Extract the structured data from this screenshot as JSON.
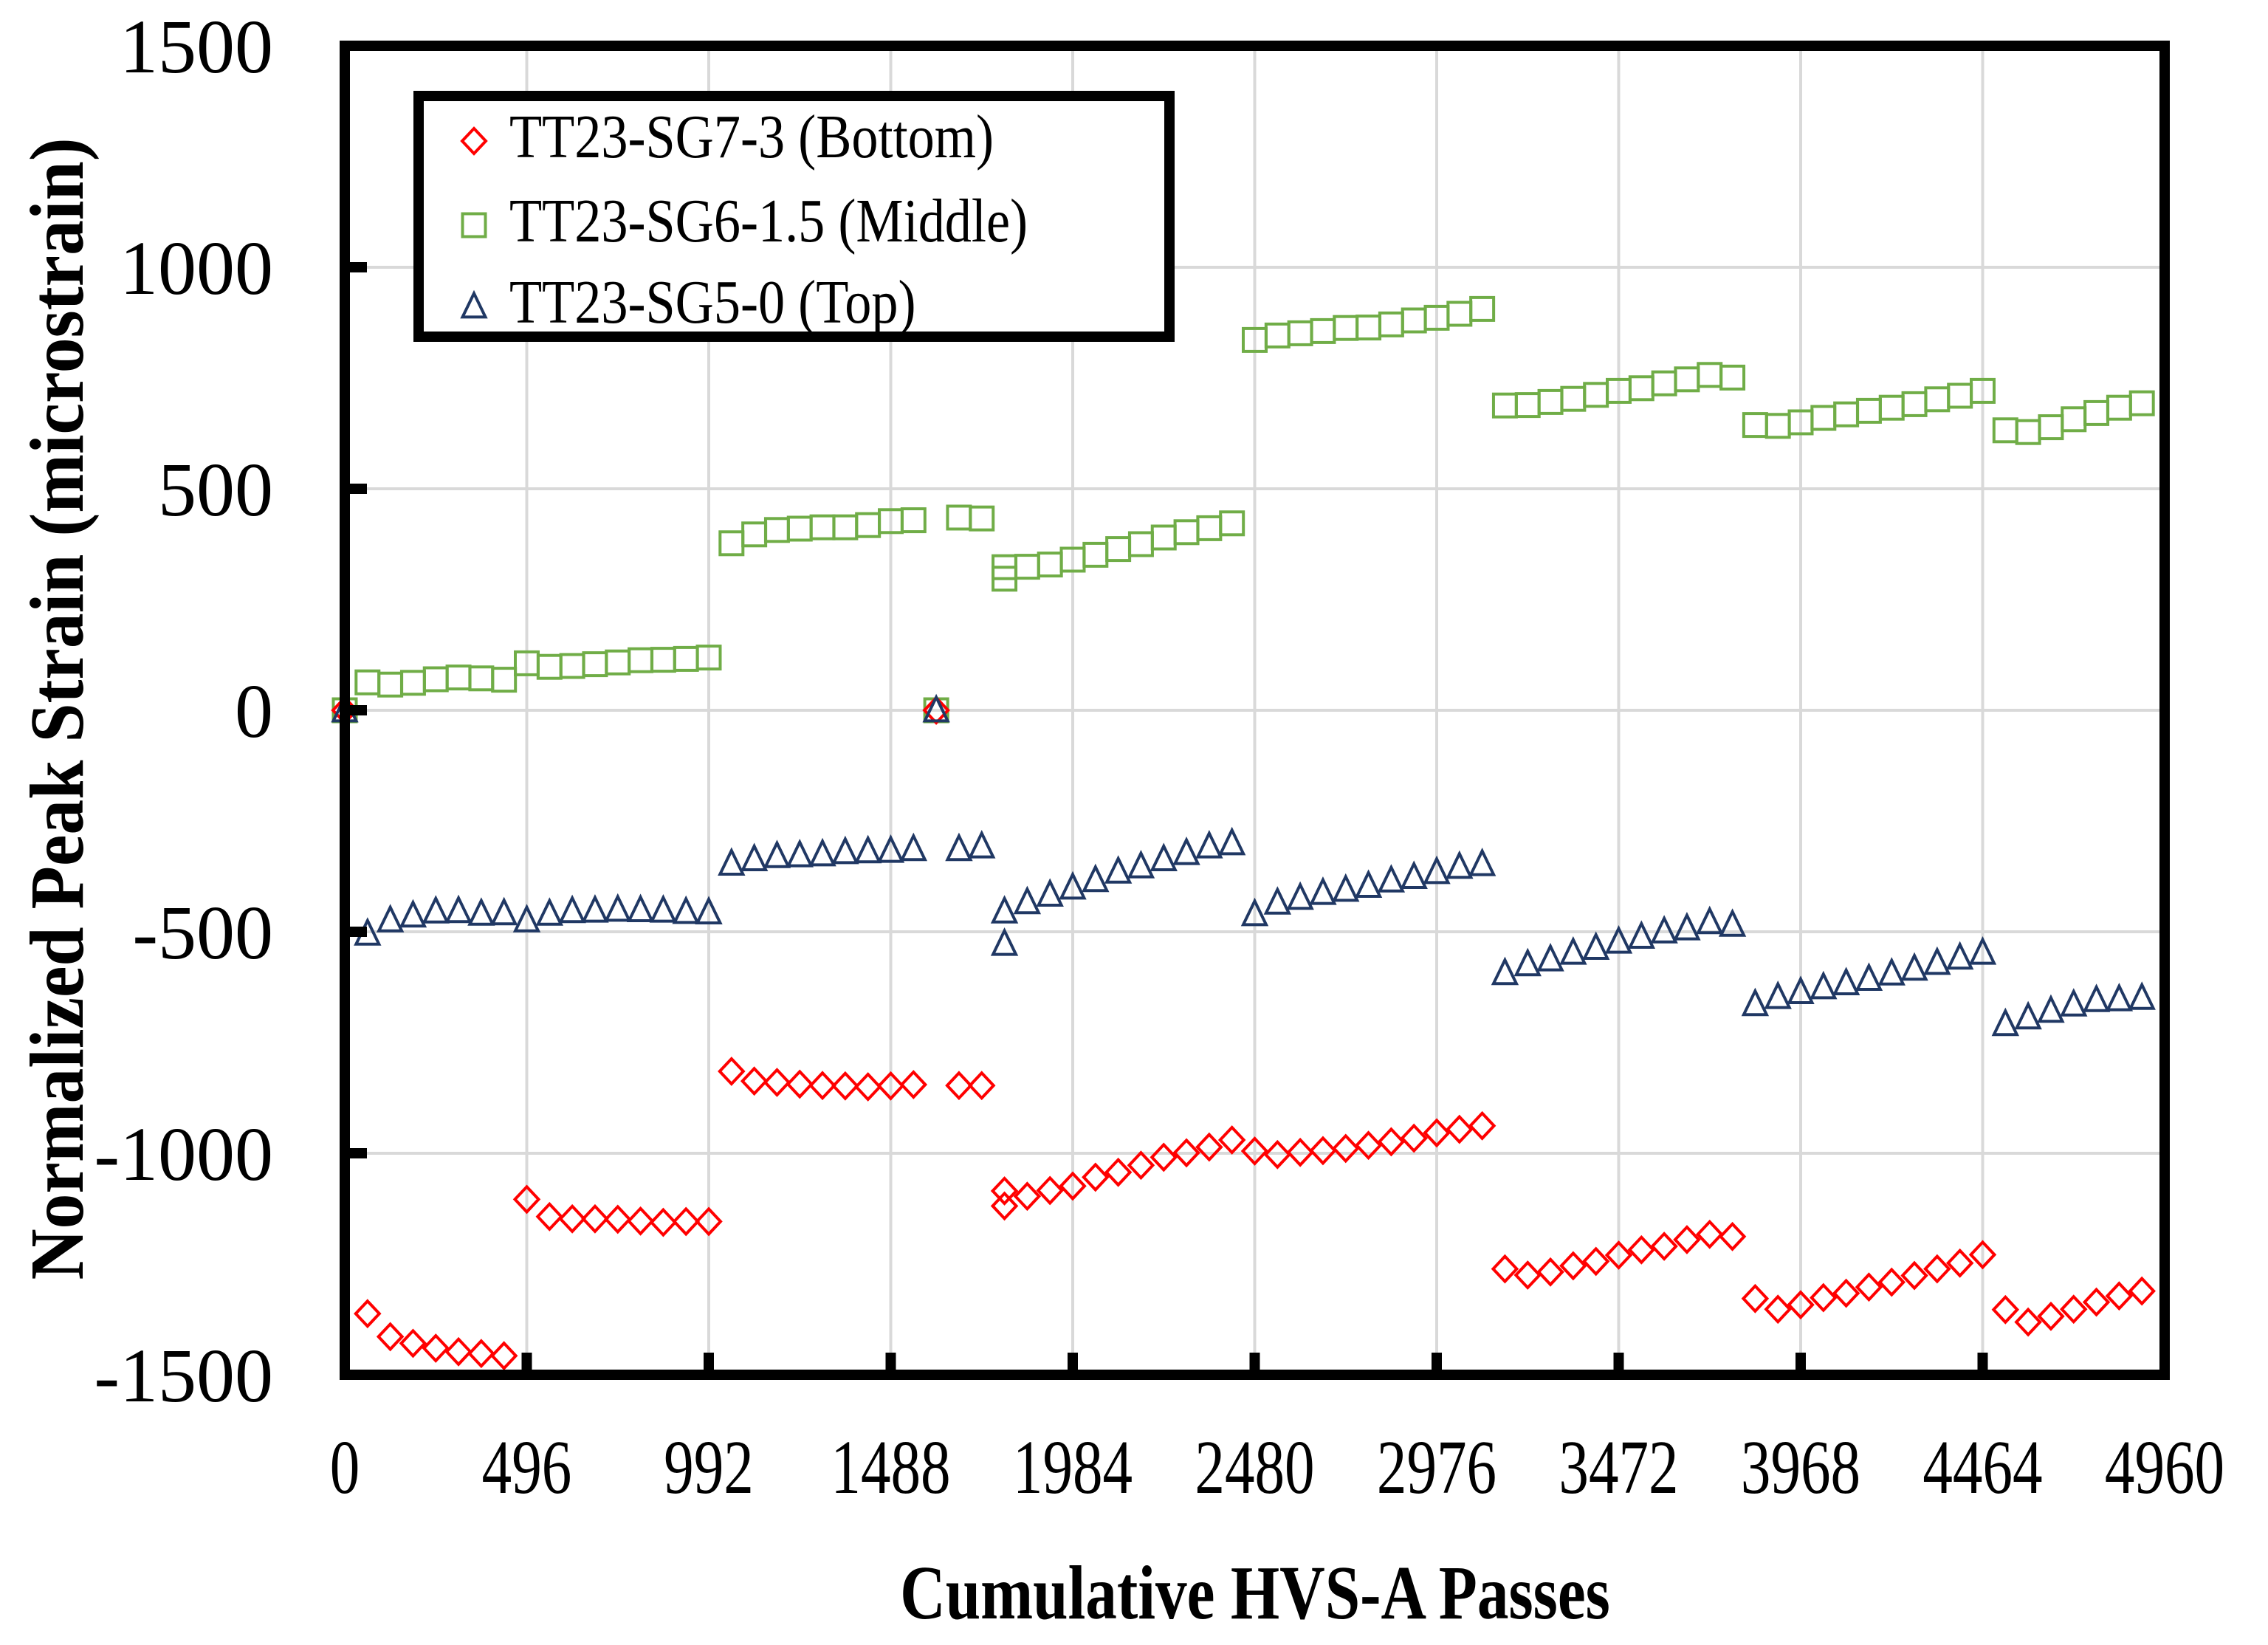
{
  "chart_data": {
    "type": "scatter",
    "title": "",
    "xlabel": "Cumulative HVS-A Passes",
    "ylabel": "Normalized Peak Strain (microstrain)",
    "xlim": [
      0,
      4960
    ],
    "ylim": [
      -1500,
      1500
    ],
    "xticks": [
      0,
      496,
      992,
      1488,
      1984,
      2480,
      2976,
      3472,
      3968,
      4464,
      4960
    ],
    "yticks": [
      -1500,
      -1000,
      -500,
      0,
      500,
      1000,
      1500
    ],
    "xtick_labels": [
      "0",
      "496",
      "992",
      "1488",
      "1984",
      "2480",
      "2976",
      "3472",
      "3968",
      "4464",
      "4960"
    ],
    "ytick_labels": [
      "-1500",
      "-1000",
      "-500",
      "0",
      "500",
      "1000",
      "1500"
    ],
    "grid": true,
    "legend_position": "top-left",
    "series": [
      {
        "name": "TT23-SG7-3 (Bottom)",
        "marker": "diamond",
        "color": "#FF0000",
        "points": [
          [
            0,
            0
          ],
          [
            62,
            -1362
          ],
          [
            124,
            -1414
          ],
          [
            186,
            -1429
          ],
          [
            248,
            -1440
          ],
          [
            310,
            -1448
          ],
          [
            372,
            -1452
          ],
          [
            434,
            -1457
          ],
          [
            496,
            -1104
          ],
          [
            558,
            -1143
          ],
          [
            620,
            -1148
          ],
          [
            682,
            -1148
          ],
          [
            744,
            -1149
          ],
          [
            806,
            -1153
          ],
          [
            868,
            -1156
          ],
          [
            930,
            -1154
          ],
          [
            992,
            -1154
          ],
          [
            1054,
            -815
          ],
          [
            1116,
            -837
          ],
          [
            1178,
            -840
          ],
          [
            1240,
            -844
          ],
          [
            1302,
            -847
          ],
          [
            1364,
            -848
          ],
          [
            1426,
            -850
          ],
          [
            1488,
            -848
          ],
          [
            1550,
            -845
          ],
          [
            1612,
            0
          ],
          [
            1674,
            -847
          ],
          [
            1736,
            -847
          ],
          [
            1798,
            -1085
          ],
          [
            1798,
            -1119
          ],
          [
            1860,
            -1097
          ],
          [
            1922,
            -1084
          ],
          [
            1984,
            -1074
          ],
          [
            2046,
            -1054
          ],
          [
            2108,
            -1043
          ],
          [
            2170,
            -1027
          ],
          [
            2232,
            -1009
          ],
          [
            2294,
            -999
          ],
          [
            2356,
            -986
          ],
          [
            2418,
            -970
          ],
          [
            2480,
            -995
          ],
          [
            2542,
            -1003
          ],
          [
            2604,
            -998
          ],
          [
            2666,
            -994
          ],
          [
            2728,
            -989
          ],
          [
            2790,
            -982
          ],
          [
            2852,
            -974
          ],
          [
            2914,
            -966
          ],
          [
            2976,
            -954
          ],
          [
            3038,
            -946
          ],
          [
            3100,
            -938
          ],
          [
            3162,
            -1261
          ],
          [
            3224,
            -1275
          ],
          [
            3286,
            -1268
          ],
          [
            3348,
            -1254
          ],
          [
            3410,
            -1244
          ],
          [
            3472,
            -1230
          ],
          [
            3534,
            -1218
          ],
          [
            3596,
            -1210
          ],
          [
            3658,
            -1195
          ],
          [
            3720,
            -1183
          ],
          [
            3782,
            -1188
          ],
          [
            3844,
            -1328
          ],
          [
            3906,
            -1352
          ],
          [
            3968,
            -1342
          ],
          [
            4030,
            -1326
          ],
          [
            4092,
            -1316
          ],
          [
            4154,
            -1302
          ],
          [
            4216,
            -1291
          ],
          [
            4278,
            -1276
          ],
          [
            4340,
            -1261
          ],
          [
            4402,
            -1248
          ],
          [
            4464,
            -1229
          ],
          [
            4526,
            -1353
          ],
          [
            4588,
            -1381
          ],
          [
            4650,
            -1368
          ],
          [
            4712,
            -1352
          ],
          [
            4774,
            -1336
          ],
          [
            4836,
            -1322
          ],
          [
            4898,
            -1311
          ]
        ]
      },
      {
        "name": "TT23-SG6-1.5 (Middle)",
        "marker": "square",
        "color": "#70AD47",
        "points": [
          [
            0,
            0
          ],
          [
            62,
            63
          ],
          [
            124,
            58
          ],
          [
            186,
            62
          ],
          [
            248,
            70
          ],
          [
            310,
            74
          ],
          [
            372,
            72
          ],
          [
            434,
            69
          ],
          [
            496,
            106
          ],
          [
            558,
            98
          ],
          [
            620,
            100
          ],
          [
            682,
            104
          ],
          [
            744,
            108
          ],
          [
            806,
            113
          ],
          [
            868,
            114
          ],
          [
            930,
            116
          ],
          [
            992,
            119
          ],
          [
            1054,
            377
          ],
          [
            1116,
            397
          ],
          [
            1178,
            407
          ],
          [
            1240,
            410
          ],
          [
            1302,
            413
          ],
          [
            1364,
            413
          ],
          [
            1426,
            418
          ],
          [
            1488,
            427
          ],
          [
            1550,
            429
          ],
          [
            1612,
            0
          ],
          [
            1674,
            435
          ],
          [
            1736,
            433
          ],
          [
            1798,
            323
          ],
          [
            1798,
            297
          ],
          [
            1860,
            324
          ],
          [
            1922,
            329
          ],
          [
            1984,
            340
          ],
          [
            2046,
            351
          ],
          [
            2108,
            364
          ],
          [
            2170,
            375
          ],
          [
            2232,
            390
          ],
          [
            2294,
            402
          ],
          [
            2356,
            411
          ],
          [
            2418,
            422
          ],
          [
            2480,
            836
          ],
          [
            2542,
            846
          ],
          [
            2604,
            851
          ],
          [
            2666,
            856
          ],
          [
            2728,
            863
          ],
          [
            2790,
            864
          ],
          [
            2852,
            871
          ],
          [
            2914,
            880
          ],
          [
            2976,
            886
          ],
          [
            3038,
            895
          ],
          [
            3100,
            906
          ],
          [
            3162,
            688
          ],
          [
            3224,
            689
          ],
          [
            3286,
            696
          ],
          [
            3348,
            703
          ],
          [
            3410,
            712
          ],
          [
            3472,
            721
          ],
          [
            3534,
            727
          ],
          [
            3596,
            738
          ],
          [
            3658,
            747
          ],
          [
            3720,
            757
          ],
          [
            3782,
            751
          ],
          [
            3844,
            644
          ],
          [
            3906,
            642
          ],
          [
            3968,
            650
          ],
          [
            4030,
            660
          ],
          [
            4092,
            668
          ],
          [
            4154,
            676
          ],
          [
            4216,
            683
          ],
          [
            4278,
            691
          ],
          [
            4340,
            702
          ],
          [
            4402,
            710
          ],
          [
            4464,
            721
          ],
          [
            4526,
            632
          ],
          [
            4588,
            628
          ],
          [
            4650,
            639
          ],
          [
            4712,
            657
          ],
          [
            4774,
            671
          ],
          [
            4836,
            683
          ],
          [
            4898,
            693
          ]
        ]
      },
      {
        "name": "TT23-SG5-0 (Top)",
        "marker": "triangle",
        "color": "#203864",
        "points": [
          [
            0,
            0
          ],
          [
            62,
            -504
          ],
          [
            124,
            -474
          ],
          [
            186,
            -463
          ],
          [
            248,
            -454
          ],
          [
            310,
            -453
          ],
          [
            372,
            -459
          ],
          [
            434,
            -458
          ],
          [
            496,
            -474
          ],
          [
            558,
            -459
          ],
          [
            620,
            -453
          ],
          [
            682,
            -452
          ],
          [
            744,
            -450
          ],
          [
            806,
            -451
          ],
          [
            868,
            -452
          ],
          [
            930,
            -455
          ],
          [
            992,
            -456
          ],
          [
            1054,
            -346
          ],
          [
            1116,
            -336
          ],
          [
            1178,
            -329
          ],
          [
            1240,
            -327
          ],
          [
            1302,
            -325
          ],
          [
            1364,
            -320
          ],
          [
            1426,
            -318
          ],
          [
            1488,
            -317
          ],
          [
            1550,
            -313
          ],
          [
            1612,
            0
          ],
          [
            1674,
            -313
          ],
          [
            1736,
            -307
          ],
          [
            1798,
            -454
          ],
          [
            1798,
            -527
          ],
          [
            1860,
            -433
          ],
          [
            1922,
            -416
          ],
          [
            1984,
            -400
          ],
          [
            2046,
            -383
          ],
          [
            2108,
            -364
          ],
          [
            2170,
            -352
          ],
          [
            2232,
            -336
          ],
          [
            2294,
            -322
          ],
          [
            2356,
            -307
          ],
          [
            2418,
            -300
          ],
          [
            2480,
            -460
          ],
          [
            2542,
            -434
          ],
          [
            2604,
            -423
          ],
          [
            2666,
            -412
          ],
          [
            2728,
            -405
          ],
          [
            2790,
            -396
          ],
          [
            2852,
            -384
          ],
          [
            2914,
            -376
          ],
          [
            2976,
            -365
          ],
          [
            3038,
            -353
          ],
          [
            3100,
            -347
          ],
          [
            3162,
            -593
          ],
          [
            3224,
            -573
          ],
          [
            3286,
            -562
          ],
          [
            3348,
            -547
          ],
          [
            3410,
            -536
          ],
          [
            3472,
            -522
          ],
          [
            3534,
            -511
          ],
          [
            3596,
            -499
          ],
          [
            3658,
            -492
          ],
          [
            3720,
            -478
          ],
          [
            3782,
            -484
          ],
          [
            3844,
            -663
          ],
          [
            3906,
            -647
          ],
          [
            3968,
            -636
          ],
          [
            4030,
            -625
          ],
          [
            4092,
            -616
          ],
          [
            4154,
            -606
          ],
          [
            4216,
            -594
          ],
          [
            4278,
            -583
          ],
          [
            4340,
            -570
          ],
          [
            4402,
            -558
          ],
          [
            4464,
            -547
          ],
          [
            4526,
            -708
          ],
          [
            4588,
            -693
          ],
          [
            4650,
            -678
          ],
          [
            4712,
            -664
          ],
          [
            4774,
            -654
          ],
          [
            4836,
            -652
          ],
          [
            4898,
            -649
          ]
        ]
      }
    ]
  }
}
